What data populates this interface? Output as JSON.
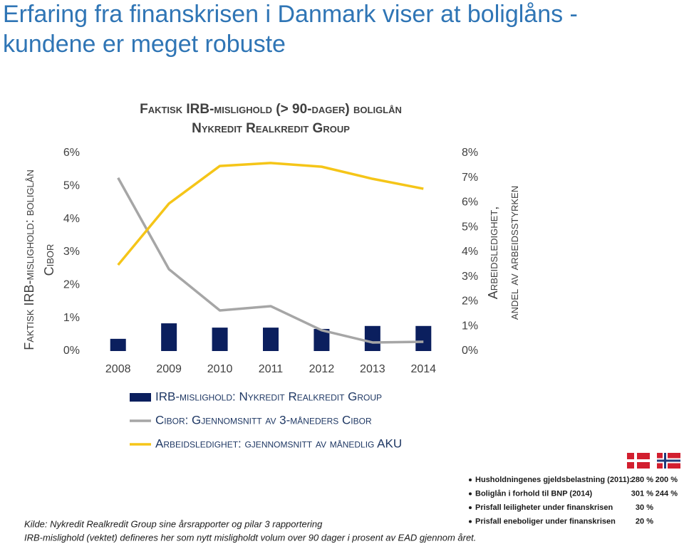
{
  "slide": {
    "title": [
      "Erfaring fra finanskrisen i Danmark viser at boliglåns -",
      "kundene er meget robuste"
    ],
    "source": [
      "Kilde: Nykredit Realkredit Group sine årsrapporter og pilar 3 rapportering",
      "IRB-mislighold (vektet) defineres her som nytt misligholdt volum over 90 dager i prosent av EAD gjennom året."
    ]
  },
  "chart_data": {
    "type": "bar",
    "title": "Faktisk IRB-mislighold (> 90-dager) boliglån",
    "subtitle": "Nykredit Realkredit Group",
    "ylabel": [
      "Faktisk IRB-mislighold: boliglån",
      "Cibor"
    ],
    "y2label": [
      "Arbeidsledighet,",
      "andel av arbeidsstyrken"
    ],
    "categories": [
      "2008",
      "2009",
      "2010",
      "2011",
      "2012",
      "2013",
      "2014"
    ],
    "series": [
      {
        "name": "IRB-mislighold: Nykredit Realkredit Group",
        "type": "bar",
        "color": "#0b1f5e",
        "values": [
          0.37,
          0.84,
          0.71,
          0.71,
          0.67,
          0.76,
          0.76
        ]
      },
      {
        "name": "Cibor: Gjennomsnitt av 3-måneders Cibor",
        "type": "line",
        "color": "#a6a6a6",
        "values": [
          5.25,
          2.48,
          1.23,
          1.36,
          0.63,
          0.26,
          0.28
        ]
      },
      {
        "name": "Arbeidsledighet: gjennomsnitt av månedlig AKU",
        "type": "line",
        "axis": "y2",
        "color": "#f5c518",
        "values": [
          3.48,
          5.96,
          7.48,
          7.6,
          7.45,
          6.96,
          6.56
        ]
      }
    ],
    "ylim": [
      0,
      6
    ],
    "yticks": [
      {
        "value": 0,
        "label": "0%"
      },
      {
        "value": 1,
        "label": "1%"
      },
      {
        "value": 2,
        "label": "2%"
      },
      {
        "value": 3,
        "label": "3%"
      },
      {
        "value": 4,
        "label": "4%"
      },
      {
        "value": 5,
        "label": "5%"
      },
      {
        "value": 6,
        "label": "6%"
      }
    ],
    "y2lim": [
      0,
      8
    ],
    "y2ticks": [
      {
        "value": 0,
        "label": "0%"
      },
      {
        "value": 1,
        "label": "1%"
      },
      {
        "value": 2,
        "label": "2%"
      },
      {
        "value": 3,
        "label": "3%"
      },
      {
        "value": 4,
        "label": "4%"
      },
      {
        "value": 5,
        "label": "5%"
      },
      {
        "value": 6,
        "label": "6%"
      },
      {
        "value": 7,
        "label": "7%"
      },
      {
        "value": 8,
        "label": "8%"
      }
    ],
    "grid": false
  },
  "table": {
    "rows": [
      [
        "Husholdningenes gjeldsbelastning (2011):",
        "280 %",
        "200 %"
      ],
      [
        "Boliglån i forhold til BNP (2014)",
        "301 %",
        "244 %"
      ],
      [
        "Prisfall leiligheter under finanskrisen",
        "30 %"
      ],
      [
        "Prisfall eneboliger under finanskrisen",
        "20 %"
      ]
    ]
  }
}
